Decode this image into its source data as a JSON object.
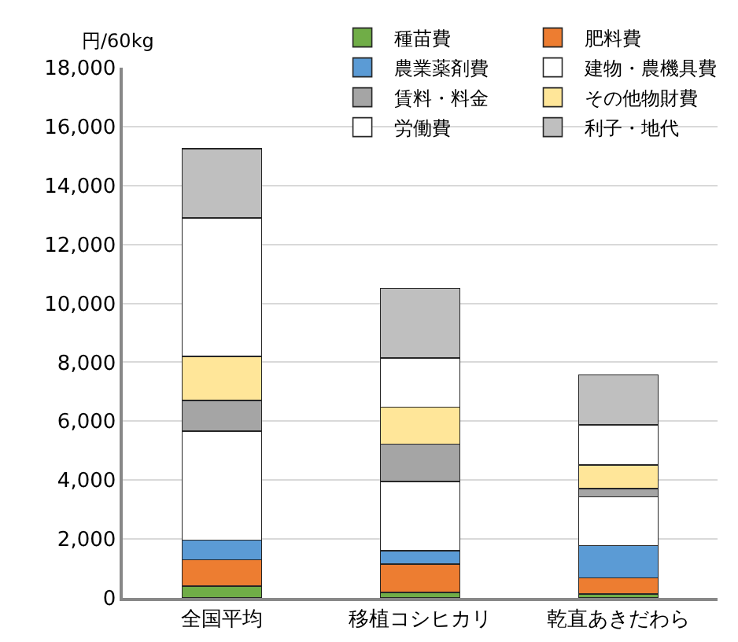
{
  "chart_data": {
    "type": "bar",
    "stacked": true,
    "ylabel": "円/60kg",
    "categories": [
      "全国平均",
      "移植コシヒカリ",
      "乾直あきだわら"
    ],
    "series": [
      {
        "name": "種苗費",
        "color": "#70ad47",
        "values": [
          400,
          180,
          140
        ]
      },
      {
        "name": "肥料費",
        "color": "#ed7d31",
        "values": [
          900,
          970,
          540
        ]
      },
      {
        "name": "農業薬剤費",
        "color": "#5b9bd5",
        "values": [
          660,
          450,
          1100
        ]
      },
      {
        "name": "建物・農機具費",
        "color": "#ffffff",
        "values": [
          3700,
          2350,
          1650
        ]
      },
      {
        "name": "賃料・料金",
        "color": "#a5a5a5",
        "values": [
          1040,
          1270,
          290
        ]
      },
      {
        "name": "その他物財費",
        "color": "#ffe699",
        "values": [
          1500,
          1260,
          800
        ]
      },
      {
        "name": "労働費",
        "color": "#ffffff",
        "values": [
          4700,
          1660,
          1360
        ]
      },
      {
        "name": "利子・地代",
        "color": "#bfbfbf",
        "values": [
          2350,
          2370,
          1690
        ]
      }
    ],
    "ylim": [
      0,
      18000
    ],
    "yticks": [
      {
        "value": 0,
        "label": "0"
      },
      {
        "value": 2000,
        "label": "2,000"
      },
      {
        "value": 4000,
        "label": "4,000"
      },
      {
        "value": 6000,
        "label": "6,000"
      },
      {
        "value": 8000,
        "label": "8,000"
      },
      {
        "value": 10000,
        "label": "10,000"
      },
      {
        "value": 12000,
        "label": "12,000"
      },
      {
        "value": 14000,
        "label": "14,000"
      },
      {
        "value": 16000,
        "label": "16,000"
      },
      {
        "value": 18000,
        "label": "18,000"
      }
    ],
    "grid": "y",
    "legend": "top right"
  }
}
